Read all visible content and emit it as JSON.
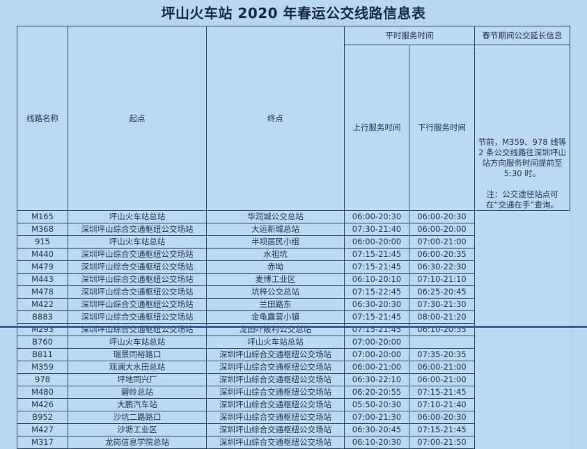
{
  "title": "坪山火车站 2020 年春运公交线路信息表",
  "headers": {
    "route": "线路名称",
    "start": "起点",
    "end": "终点",
    "regular": "平时服务时间",
    "up": "上行服务时间",
    "down": "下行服务时间",
    "festival": "春节期间公交延长信息"
  },
  "festival_note": {
    "line1": "节前，M359、978 线等 2 条公交线路往深圳坪山站方向服务时间提前至 5:30 时。",
    "line2": "注：公交途径站点可在“交通在手”查询。"
  },
  "rows": [
    {
      "route": "M165",
      "start": "坪山火车站总站",
      "end": "华润城公交总站",
      "up": "06:00-20:30",
      "down": "06:00-20:30"
    },
    {
      "route": "M368",
      "start": "深圳坪山综合交通枢纽公交场站",
      "end": "大运新城总站",
      "up": "07:30-21:40",
      "down": "06:00-20:00"
    },
    {
      "route": "915",
      "start": "坪山火车站总站",
      "end": "半坝居民小组",
      "up": "06:00-20:00",
      "down": "07:00-21:00"
    },
    {
      "route": "M440",
      "start": "深圳坪山综合交通枢纽公交场站",
      "end": "水祖坑",
      "up": "07:15-21:45",
      "down": "06:00-20:35"
    },
    {
      "route": "M479",
      "start": "深圳坪山综合交通枢纽公交场站",
      "end": "赤坳",
      "up": "07:15-21:45",
      "down": "06:30-22:30"
    },
    {
      "route": "M443",
      "start": "深圳坪山综合交通枢纽公交场站",
      "end": "麦博工业区",
      "up": "06:10-20:10",
      "down": "07:10-21:10"
    },
    {
      "route": "M478",
      "start": "深圳坪山综合交通枢纽公交场站",
      "end": "坑梓公交总站",
      "up": "07:15-22:45",
      "down": "06:25-20:45"
    },
    {
      "route": "M422",
      "start": "深圳坪山综合交通枢纽公交场站",
      "end": "兰田路东",
      "up": "06:30-20:30",
      "down": "07:30-21:30"
    },
    {
      "route": "B883",
      "start": "深圳坪山综合交通枢纽公交场站",
      "end": "金龟露营小镇",
      "up": "07:15-21:45",
      "down": "08:00-21:20"
    },
    {
      "route": "M293",
      "start": "深圳坪山综合交通枢纽公交场站",
      "end": "龙田吓陂村公交总站",
      "up": "07:15-21:45",
      "down": "06:10-20:35"
    },
    {
      "route": "B760",
      "start": "坪山火车站总站",
      "end": "坪山火车站总站",
      "up": "07:00-20:00",
      "down": ""
    },
    {
      "route": "B811",
      "start": "瑞景同裕路口",
      "end": "深圳坪山综合交通枢纽公交场站",
      "up": "07:00-20:00",
      "down": "07:35-20:35"
    },
    {
      "route": "M359",
      "start": "观澜大水田总站",
      "end": "深圳坪山综合交通枢纽公交场站",
      "up": "06:00-21:00",
      "down": "06:00-21:00"
    },
    {
      "route": "978",
      "start": "坪地同兴厂",
      "end": "深圳坪山综合交通枢纽公交场站",
      "up": "06:30-22:10",
      "down": "06:00-21:00"
    },
    {
      "route": "M480",
      "start": "碧岭总站",
      "end": "深圳坪山综合交通枢纽公交场站",
      "up": "06:20-20:55",
      "down": "07:15-21:45"
    },
    {
      "route": "M426",
      "start": "大鹏汽车站",
      "end": "深圳坪山综合交通枢纽公交场站",
      "up": "05:50-20:30",
      "down": "07:10-21:40"
    },
    {
      "route": "B952",
      "start": "沙坑二路路口",
      "end": "深圳坪山综合交通枢纽公交场站",
      "up": "07:00-21:30",
      "down": "06:00-20:30"
    },
    {
      "route": "M427",
      "start": "沙坜工业区",
      "end": "深圳坪山综合交通枢纽公交场站",
      "up": "06:30-20:45",
      "down": "07:15-21:45"
    },
    {
      "route": "M317",
      "start": "龙岗信息学院总站",
      "end": "深圳坪山综合交通枢纽公交场站",
      "up": "06:10-20:30",
      "down": "07:00-21:50"
    }
  ]
}
